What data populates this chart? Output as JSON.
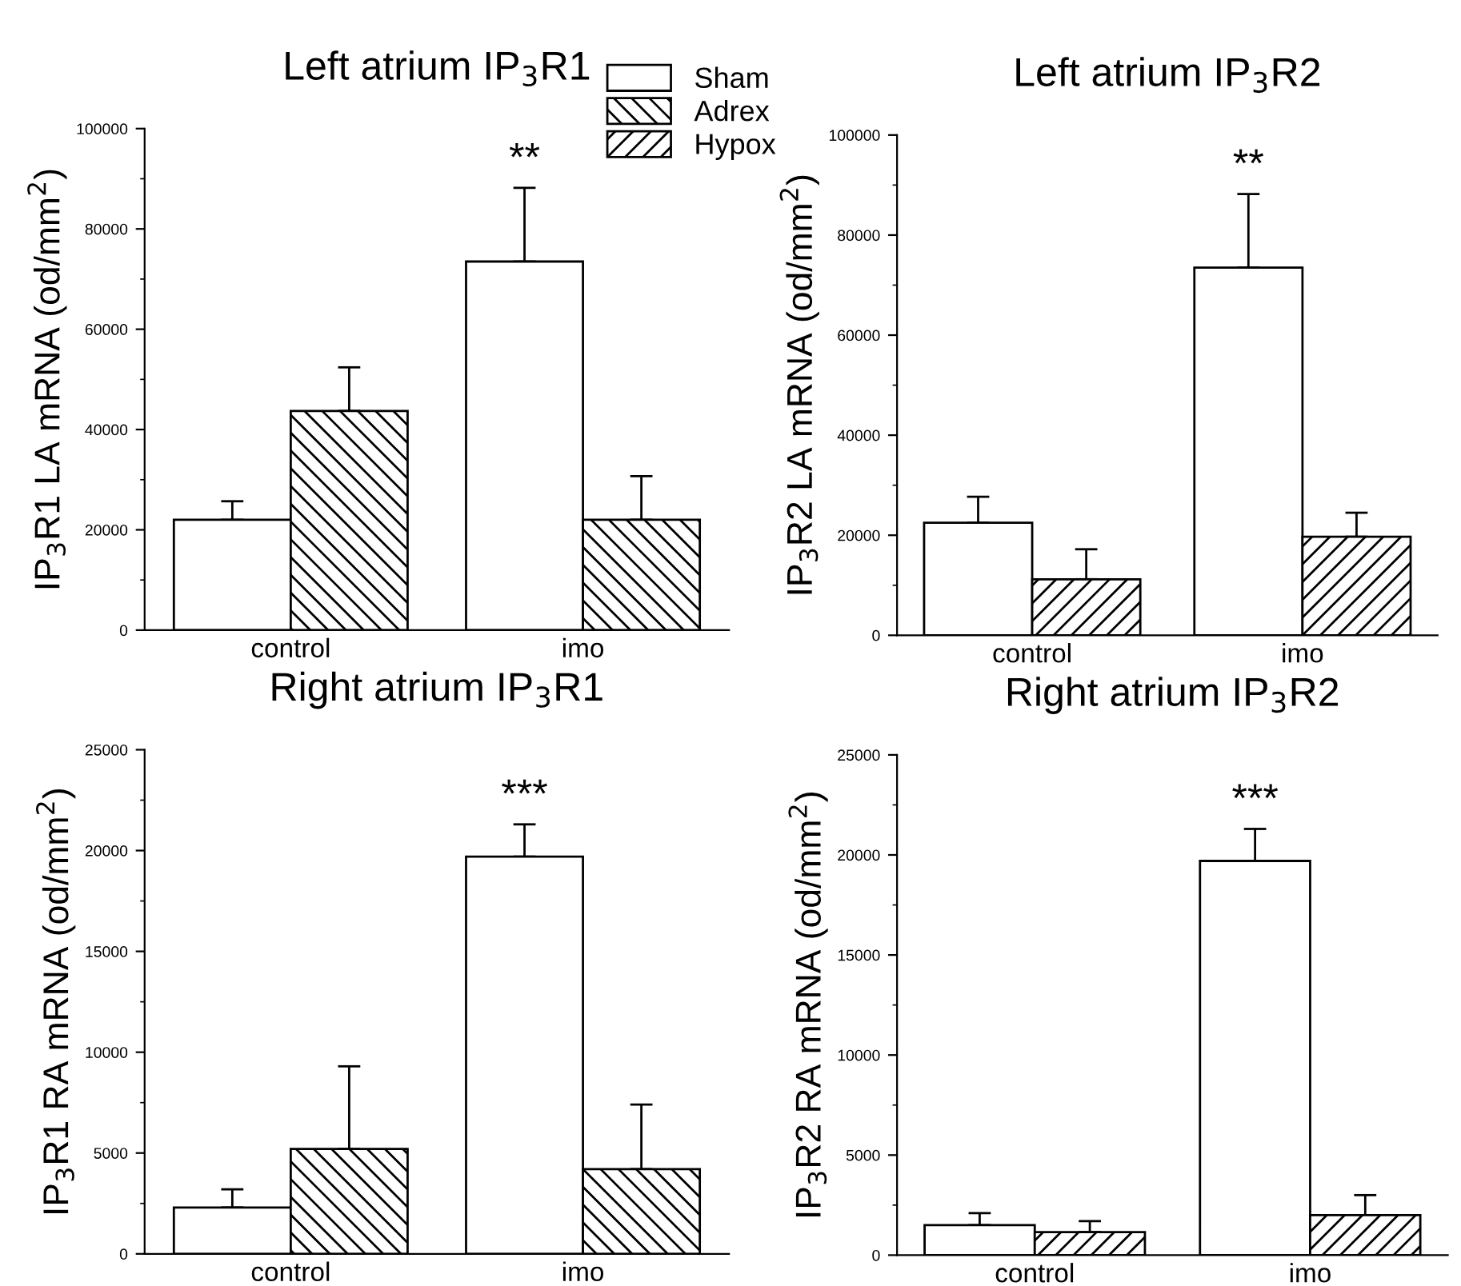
{
  "chart_data": [
    {
      "type": "bar",
      "title": "Left atrium IP$_{3}$R1",
      "ylabel": "IP$_{3}$R1 LA mRNA (od/mm$^{2}$)",
      "categories": [
        "control",
        "imo"
      ],
      "legend": "top right",
      "ylim": [
        0,
        100000
      ],
      "yticks": [
        0,
        20000,
        40000,
        60000,
        80000,
        100000
      ],
      "series": [
        {
          "name": "Sham",
          "color": "#ffffff",
          "values": [
            22000,
            73500
          ],
          "errors": [
            3700,
            14700
          ]
        },
        {
          "name": "Adrex",
          "color": "#000000",
          "values": [
            43700,
            22000
          ],
          "errors": [
            8700,
            8700
          ]
        },
        {
          "name": "Hypox",
          "color": "#000000",
          "values": [
            null,
            null
          ]
        }
      ],
      "annotations": [
        "**"
      ]
    },
    {
      "type": "bar",
      "title": "Left atrium IP$_{3}$R2",
      "ylabel": "IP$_{3}$R2 LA mRNA (od/mm$^{2}$)",
      "categories": [
        "control",
        "imo"
      ],
      "ylim": [
        0,
        100000
      ],
      "yticks": [
        0,
        20000,
        40000,
        60000,
        80000,
        100000
      ],
      "series": [
        {
          "color": "#ffffff",
          "values": [
            22500,
            73500
          ],
          "errors": [
            5200,
            14700
          ]
        },
        {
          "color": "#000000",
          "values": [
            null,
            null
          ]
        },
        {
          "color": "#000000",
          "values": [
            11200,
            19700
          ],
          "errors": [
            6000,
            4800
          ]
        }
      ],
      "annotations": [
        "**"
      ]
    },
    {
      "type": "bar",
      "title": "Right atrium IP$_{3}$R1",
      "ylabel": "IP$_{3}$R1 RA mRNA (od/mm$^{2}$)",
      "categories": [
        "control",
        "imo"
      ],
      "ylim": [
        0,
        25000
      ],
      "yticks": [
        0,
        5000,
        10000,
        15000,
        20000,
        25000
      ],
      "series": [
        {
          "color": "#ffffff",
          "values": [
            2300,
            19700
          ],
          "errors": [
            900,
            1600
          ]
        },
        {
          "color": "#000000",
          "values": [
            5200,
            4200
          ],
          "errors": [
            4100,
            3200
          ]
        }
      ],
      "annotations": [
        "***"
      ]
    },
    {
      "type": "bar",
      "title": "Right atrium IP$_{3}$R2",
      "ylabel": "IP$_{3}$R2 RA mRNA (od/mm$^{2}$)",
      "categories": [
        "control",
        "imo"
      ],
      "ylim": [
        0,
        25000
      ],
      "yticks": [
        0,
        5000,
        10000,
        15000,
        20000,
        25000
      ],
      "series": [
        {
          "color": "#ffffff",
          "values": [
            1500,
            19700
          ],
          "errors": [
            600,
            1600
          ]
        },
        {
          "color": "#000000",
          "values": [
            null,
            null
          ]
        },
        {
          "color": "#000000",
          "values": [
            1150,
            2000
          ],
          "errors": [
            550,
            1000
          ]
        }
      ],
      "annotations": [
        "***"
      ]
    }
  ]
}
